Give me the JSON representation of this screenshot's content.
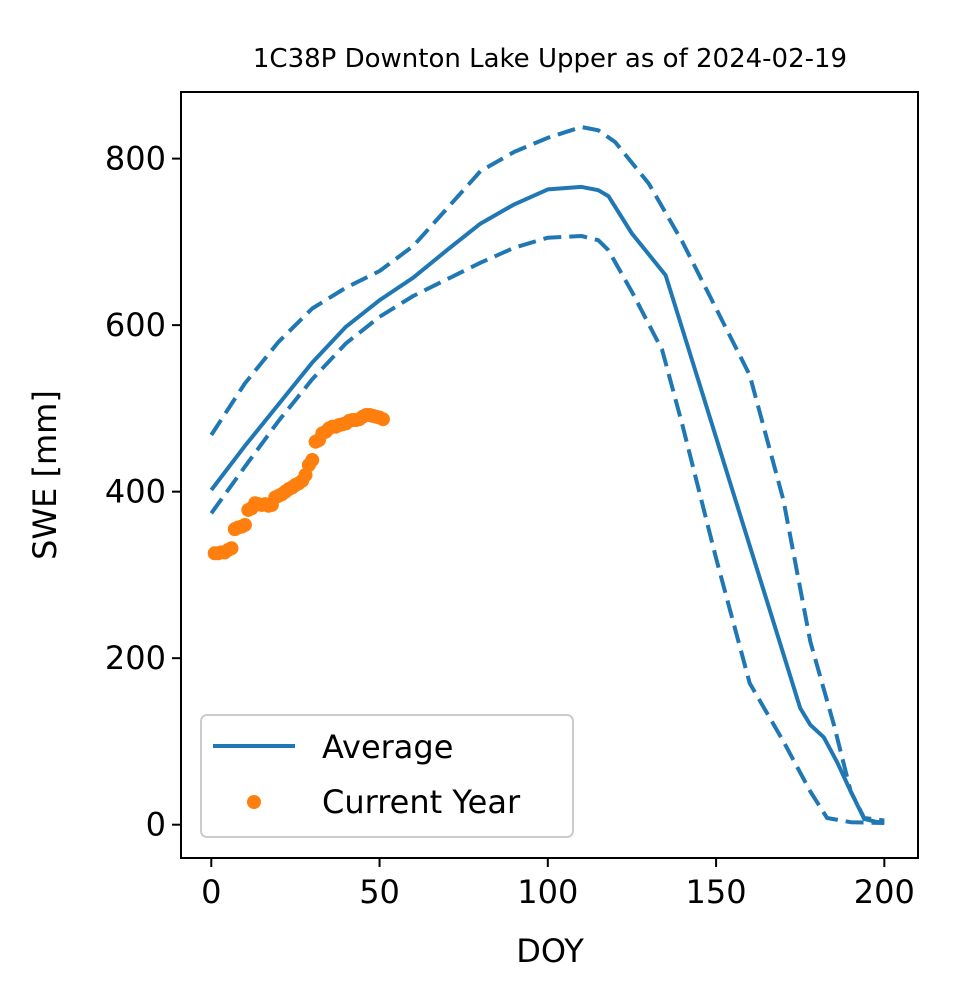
{
  "chart_data": {
    "type": "line",
    "title": "1C38P Downton Lake Upper as of 2024-02-19",
    "xlabel": "DOY",
    "ylabel": "SWE [mm]",
    "xlim": [
      -9,
      210
    ],
    "ylim": [
      -40,
      880
    ],
    "x_ticks": [
      0,
      50,
      100,
      150,
      200
    ],
    "y_ticks": [
      0,
      200,
      400,
      600,
      800
    ],
    "legend": {
      "position": "lower-left",
      "entries": [
        {
          "label": "Average",
          "marker": "line"
        },
        {
          "label": "Current Year",
          "marker": "dot"
        }
      ]
    },
    "series": [
      {
        "name": "Average",
        "style": "solid",
        "color": "#1f77b4",
        "x": [
          0,
          10,
          20,
          30,
          40,
          50,
          60,
          70,
          80,
          90,
          100,
          110,
          115,
          118,
          125,
          135,
          145,
          155,
          165,
          175,
          178,
          182,
          186,
          190,
          194,
          198,
          200
        ],
        "y": [
          402,
          455,
          505,
          555,
          598,
          630,
          657,
          690,
          722,
          745,
          763,
          766,
          762,
          755,
          710,
          660,
          530,
          400,
          270,
          140,
          120,
          105,
          75,
          40,
          7,
          3,
          4
        ]
      },
      {
        "style": "dashed",
        "color": "#1f77b4",
        "x": [
          0,
          10,
          20,
          30,
          40,
          50,
          60,
          70,
          80,
          90,
          100,
          110,
          115,
          120,
          130,
          140,
          150,
          160,
          170,
          178,
          185,
          190,
          194,
          200
        ],
        "y": [
          468,
          530,
          580,
          620,
          645,
          665,
          695,
          740,
          785,
          808,
          825,
          838,
          834,
          820,
          770,
          700,
          620,
          540,
          390,
          220,
          120,
          40,
          8,
          5
        ]
      },
      {
        "style": "dashed",
        "color": "#1f77b4",
        "x": [
          0,
          10,
          20,
          30,
          40,
          50,
          60,
          70,
          80,
          90,
          100,
          110,
          115,
          118,
          125,
          134,
          140,
          150,
          160,
          170,
          178,
          183,
          190,
          200
        ],
        "y": [
          374,
          430,
          485,
          535,
          578,
          610,
          635,
          655,
          675,
          693,
          705,
          707,
          702,
          690,
          640,
          570,
          480,
          320,
          170,
          100,
          40,
          8,
          3,
          2
        ]
      },
      {
        "name": "Current Year",
        "style": "dots",
        "color": "#ff7f0e",
        "x": [
          1,
          2,
          3,
          4,
          5,
          6,
          7,
          8,
          9,
          10,
          11,
          12,
          13,
          14,
          15,
          16,
          17,
          18,
          19,
          20,
          21,
          22,
          23,
          24,
          25,
          26,
          27,
          28,
          29,
          30,
          31,
          32,
          33,
          34,
          35,
          36,
          37,
          38,
          39,
          40,
          41,
          42,
          43,
          44,
          45,
          46,
          47,
          48,
          49,
          50,
          51
        ],
        "y": [
          326,
          326,
          327,
          327,
          330,
          332,
          355,
          357,
          358,
          360,
          378,
          380,
          386,
          385,
          384,
          385,
          383,
          384,
          393,
          395,
          397,
          400,
          403,
          405,
          408,
          410,
          413,
          420,
          432,
          438,
          460,
          462,
          470,
          472,
          476,
          478,
          478,
          480,
          481,
          482,
          485,
          486,
          486,
          487,
          490,
          492,
          492,
          491,
          490,
          489,
          487
        ]
      }
    ]
  }
}
